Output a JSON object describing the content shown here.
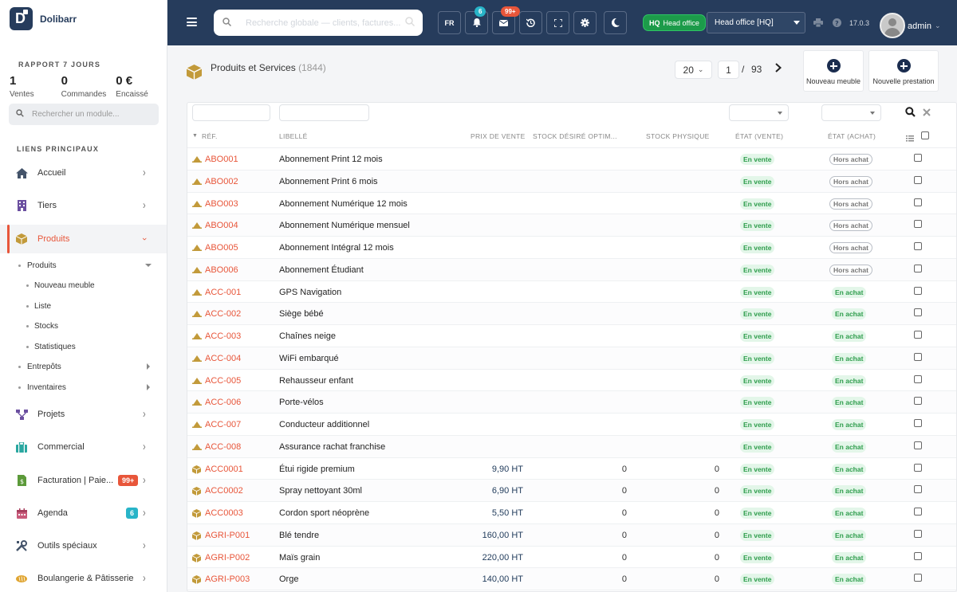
{
  "app": {
    "name": "Dolibarr"
  },
  "sidebar": {
    "report_title": "RAPPORT 7 JOURS",
    "stats": [
      {
        "value": "1",
        "label": "Ventes"
      },
      {
        "value": "0",
        "label": "Commandes"
      },
      {
        "value": "0 €",
        "label": "Encaissé"
      }
    ],
    "module_search_placeholder": "Rechercher un module...",
    "section_title": "LIENS PRINCIPAUX",
    "nav": {
      "accueil": "Accueil",
      "tiers": "Tiers",
      "produits": "Produits",
      "projets": "Projets",
      "commercial": "Commercial",
      "facturation": "Facturation | Paie...",
      "facturation_badge": "99+",
      "agenda": "Agenda",
      "agenda_badge": "6",
      "outils": "Outils spéciaux",
      "boulangerie": "Boulangerie & Pâtisserie"
    },
    "sub": {
      "produits": "Produits",
      "nouveau": "Nouveau meuble",
      "liste": "Liste",
      "stocks": "Stocks",
      "stats": "Statistiques",
      "entrepots": "Entrepôts",
      "inventaires": "Inventaires"
    }
  },
  "topbar": {
    "search_placeholder": "Recherche globale — clients, factures...",
    "lang": "FR",
    "notif_badge": "6",
    "mail_badge": "99+",
    "hq_short": "HQ",
    "hq_label": "Head office",
    "entity": "Head office [HQ]",
    "version": "17.0.3",
    "user": "admin"
  },
  "page": {
    "title": "Produits et Services",
    "count": "(1844)",
    "per_page": "20",
    "page": "1",
    "slash": "/",
    "total_pages": "93",
    "btn_new_furniture": "Nouveau meuble",
    "btn_new_service": "Nouvelle prestation"
  },
  "table": {
    "headers": {
      "ref": "RÉF.",
      "label": "LIBELLÉ",
      "price": "PRIX DE VENTE",
      "desired": "STOCK DÉSIRÉ OPTIM...",
      "physical": "STOCK PHYSIQUE",
      "sell_state": "ÉTAT (VENTE)",
      "buy_state": "ÉTAT (ACHAT)"
    },
    "rows": [
      {
        "ref": "ABO001",
        "label": "Abonnement Print 12 mois",
        "price": "",
        "desired": "",
        "physical": "",
        "sell": "En vente",
        "buy": "Hors achat",
        "kind": "service"
      },
      {
        "ref": "ABO002",
        "label": "Abonnement Print 6 mois",
        "price": "",
        "desired": "",
        "physical": "",
        "sell": "En vente",
        "buy": "Hors achat",
        "kind": "service"
      },
      {
        "ref": "ABO003",
        "label": "Abonnement Numérique 12 mois",
        "price": "",
        "desired": "",
        "physical": "",
        "sell": "En vente",
        "buy": "Hors achat",
        "kind": "service"
      },
      {
        "ref": "ABO004",
        "label": "Abonnement Numérique mensuel",
        "price": "",
        "desired": "",
        "physical": "",
        "sell": "En vente",
        "buy": "Hors achat",
        "kind": "service"
      },
      {
        "ref": "ABO005",
        "label": "Abonnement Intégral 12 mois",
        "price": "",
        "desired": "",
        "physical": "",
        "sell": "En vente",
        "buy": "Hors achat",
        "kind": "service"
      },
      {
        "ref": "ABO006",
        "label": "Abonnement Étudiant",
        "price": "",
        "desired": "",
        "physical": "",
        "sell": "En vente",
        "buy": "Hors achat",
        "kind": "service"
      },
      {
        "ref": "ACC-001",
        "label": "GPS Navigation",
        "price": "",
        "desired": "",
        "physical": "",
        "sell": "En vente",
        "buy": "En achat",
        "kind": "service"
      },
      {
        "ref": "ACC-002",
        "label": "Siège bébé",
        "price": "",
        "desired": "",
        "physical": "",
        "sell": "En vente",
        "buy": "En achat",
        "kind": "service"
      },
      {
        "ref": "ACC-003",
        "label": "Chaînes neige",
        "price": "",
        "desired": "",
        "physical": "",
        "sell": "En vente",
        "buy": "En achat",
        "kind": "service"
      },
      {
        "ref": "ACC-004",
        "label": "WiFi embarqué",
        "price": "",
        "desired": "",
        "physical": "",
        "sell": "En vente",
        "buy": "En achat",
        "kind": "service"
      },
      {
        "ref": "ACC-005",
        "label": "Rehausseur enfant",
        "price": "",
        "desired": "",
        "physical": "",
        "sell": "En vente",
        "buy": "En achat",
        "kind": "service"
      },
      {
        "ref": "ACC-006",
        "label": "Porte-vélos",
        "price": "",
        "desired": "",
        "physical": "",
        "sell": "En vente",
        "buy": "En achat",
        "kind": "service"
      },
      {
        "ref": "ACC-007",
        "label": "Conducteur additionnel",
        "price": "",
        "desired": "",
        "physical": "",
        "sell": "En vente",
        "buy": "En achat",
        "kind": "service"
      },
      {
        "ref": "ACC-008",
        "label": "Assurance rachat franchise",
        "price": "",
        "desired": "",
        "physical": "",
        "sell": "En vente",
        "buy": "En achat",
        "kind": "service"
      },
      {
        "ref": "ACC0001",
        "label": "Étui rigide premium",
        "price": "9,90 HT",
        "desired": "0",
        "physical": "0",
        "sell": "En vente",
        "buy": "En achat",
        "kind": "product"
      },
      {
        "ref": "ACC0002",
        "label": "Spray nettoyant 30ml",
        "price": "6,90 HT",
        "desired": "0",
        "physical": "0",
        "sell": "En vente",
        "buy": "En achat",
        "kind": "product"
      },
      {
        "ref": "ACC0003",
        "label": "Cordon sport néoprène",
        "price": "5,50 HT",
        "desired": "0",
        "physical": "0",
        "sell": "En vente",
        "buy": "En achat",
        "kind": "product"
      },
      {
        "ref": "AGRI-P001",
        "label": "Blé tendre",
        "price": "160,00 HT",
        "desired": "0",
        "physical": "0",
        "sell": "En vente",
        "buy": "En achat",
        "kind": "product"
      },
      {
        "ref": "AGRI-P002",
        "label": "Maïs grain",
        "price": "220,00 HT",
        "desired": "0",
        "physical": "0",
        "sell": "En vente",
        "buy": "En achat",
        "kind": "product"
      },
      {
        "ref": "AGRI-P003",
        "label": "Orge",
        "price": "140,00 HT",
        "desired": "0",
        "physical": "0",
        "sell": "En vente",
        "buy": "En achat",
        "kind": "product"
      }
    ]
  },
  "colors": {
    "topbar": "#263c5c",
    "accent": "#e8563a",
    "green": "#2e9d4c",
    "badge_teal": "#28b4c8",
    "badge_red": "#e8563a",
    "icon_gold": "#c29a3a"
  }
}
